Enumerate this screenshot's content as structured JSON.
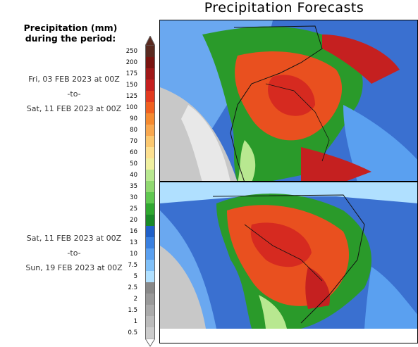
{
  "title": "Precipitation Forecasts",
  "legend_title": [
    "Precipitation (mm)",
    "during the period:"
  ],
  "periods": [
    {
      "start": "Fri, 03 FEB 2023 at 00Z",
      "sep": "-to-",
      "end": "Sat, 11 FEB 2023 at 00Z"
    },
    {
      "start": "Sat, 11 FEB 2023 at 00Z",
      "sep": "-to-",
      "end": "Sun, 19 FEB 2023 at 00Z"
    }
  ],
  "colorbar": {
    "labels": [
      "250",
      "200",
      "175",
      "150",
      "125",
      "100",
      "90",
      "80",
      "70",
      "60",
      "50",
      "40",
      "35",
      "30",
      "25",
      "20",
      "16",
      "13",
      "10",
      "7.5",
      "5",
      "2.5",
      "2",
      "1.5",
      "1",
      "0.5"
    ],
    "colors": [
      "#5a2a20",
      "#7a1410",
      "#a01818",
      "#c52020",
      "#e23a20",
      "#f06020",
      "#f58a30",
      "#f8a850",
      "#fbc870",
      "#fde090",
      "#f0f0a0",
      "#b8e890",
      "#90d870",
      "#60c850",
      "#30a830",
      "#1a8a28",
      "#2060c8",
      "#3a80e0",
      "#5aa0f0",
      "#80c0f8",
      "#b0e0ff",
      "#888888",
      "#999999",
      "#aaaaaa",
      "#bbbbbb",
      "#cccccc"
    ]
  }
}
